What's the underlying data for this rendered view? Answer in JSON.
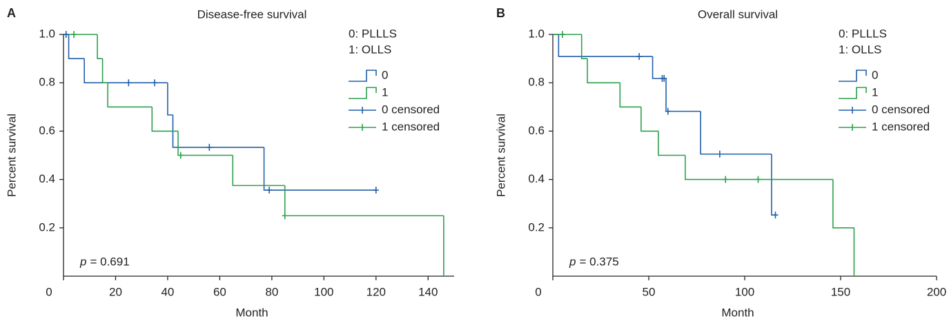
{
  "chart_data": [
    {
      "type": "kaplan-meier",
      "panel": "A",
      "title": "Disease-free survival",
      "xlabel": "Month",
      "ylabel": "Percent survival",
      "legend_header": [
        "0: PLLLS",
        "1: OLLS"
      ],
      "p_label": "p",
      "p_value": "= 0.691",
      "xlim": [
        0,
        150
      ],
      "xticks": [
        0,
        20,
        40,
        60,
        80,
        100,
        120,
        140
      ],
      "ylim": [
        0,
        1
      ],
      "yticks": [
        0.2,
        0.4,
        0.6,
        0.8,
        {
          "value": 1,
          "label": "1.0"
        }
      ],
      "series": [
        {
          "name": "0",
          "color": "#1f5fa8",
          "style": "step",
          "x": [
            0,
            2,
            8,
            40,
            42,
            77,
            120
          ],
          "values": [
            1,
            0.9,
            0.8,
            0.667,
            0.533,
            0.356,
            0.356
          ]
        },
        {
          "name": "1",
          "color": "#2aa04a",
          "style": "step",
          "x": [
            0,
            13,
            15,
            17,
            34,
            44,
            65,
            85,
            146
          ],
          "values": [
            1,
            0.9,
            0.8,
            0.7,
            0.6,
            0.5,
            0.375,
            0.25,
            0
          ]
        },
        {
          "name": "0 censored",
          "color": "#1f5fa8",
          "style": "censor",
          "x": [
            1,
            25,
            35,
            56,
            79,
            120
          ],
          "values": [
            1,
            0.8,
            0.8,
            0.533,
            0.356,
            0.356
          ]
        },
        {
          "name": "1 censored",
          "color": "#2aa04a",
          "style": "censor",
          "x": [
            4,
            45,
            85
          ],
          "values": [
            1,
            0.5,
            0.25
          ]
        }
      ]
    },
    {
      "type": "kaplan-meier",
      "panel": "B",
      "title": "Overall survival",
      "xlabel": "Month",
      "ylabel": "Percent survival",
      "legend_header": [
        "0: PLLLS",
        "1: OLLS"
      ],
      "p_label": "p",
      "p_value": "= 0.375",
      "xlim": [
        0,
        200
      ],
      "xticks": [
        0,
        50,
        100,
        150,
        200
      ],
      "ylim": [
        0,
        1
      ],
      "yticks": [
        0.2,
        0.4,
        0.6,
        0.8,
        {
          "value": 1,
          "label": "1.0"
        }
      ],
      "series": [
        {
          "name": "0",
          "color": "#1f5fa8",
          "style": "step",
          "x": [
            0,
            3,
            52,
            59,
            77,
            114,
            116
          ],
          "values": [
            1,
            0.909,
            0.818,
            0.682,
            0.505,
            0.253,
            0.253
          ]
        },
        {
          "name": "1",
          "color": "#2aa04a",
          "style": "step",
          "x": [
            0,
            15,
            18,
            35,
            46,
            55,
            69,
            146,
            157
          ],
          "values": [
            1,
            0.9,
            0.8,
            0.7,
            0.6,
            0.5,
            0.4,
            0.2,
            0
          ]
        },
        {
          "name": "0 censored",
          "color": "#1f5fa8",
          "style": "censor",
          "x": [
            45,
            57,
            58,
            60,
            87,
            116
          ],
          "values": [
            0.909,
            0.818,
            0.818,
            0.682,
            0.505,
            0.253
          ]
        },
        {
          "name": "1 censored",
          "color": "#2aa04a",
          "style": "censor",
          "x": [
            5,
            90,
            107
          ],
          "values": [
            1,
            0.4,
            0.4
          ]
        }
      ]
    }
  ]
}
